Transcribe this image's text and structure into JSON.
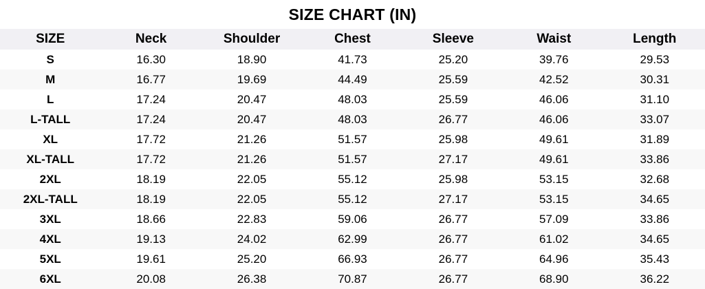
{
  "title": "SIZE CHART (IN)",
  "colors": {
    "page_bg": "#ffffff",
    "header_row_bg": "#f1f0f4",
    "stripe_row_bg": "#f8f8f8",
    "text": "#000000"
  },
  "chart_data": {
    "type": "table",
    "title": "SIZE CHART (IN)",
    "unit": "in",
    "columns": [
      "SIZE",
      "Neck",
      "Shoulder",
      "Chest",
      "Sleeve",
      "Waist",
      "Length"
    ],
    "rows": [
      {
        "size": "S",
        "values": [
          "16.30",
          "18.90",
          "41.73",
          "25.20",
          "39.76",
          "29.53"
        ]
      },
      {
        "size": "M",
        "values": [
          "16.77",
          "19.69",
          "44.49",
          "25.59",
          "42.52",
          "30.31"
        ]
      },
      {
        "size": "L",
        "values": [
          "17.24",
          "20.47",
          "48.03",
          "25.59",
          "46.06",
          "31.10"
        ]
      },
      {
        "size": "L-TALL",
        "values": [
          "17.24",
          "20.47",
          "48.03",
          "26.77",
          "46.06",
          "33.07"
        ]
      },
      {
        "size": "XL",
        "values": [
          "17.72",
          "21.26",
          "51.57",
          "25.98",
          "49.61",
          "31.89"
        ]
      },
      {
        "size": "XL-TALL",
        "values": [
          "17.72",
          "21.26",
          "51.57",
          "27.17",
          "49.61",
          "33.86"
        ]
      },
      {
        "size": "2XL",
        "values": [
          "18.19",
          "22.05",
          "55.12",
          "25.98",
          "53.15",
          "32.68"
        ]
      },
      {
        "size": "2XL-TALL",
        "values": [
          "18.19",
          "22.05",
          "55.12",
          "27.17",
          "53.15",
          "34.65"
        ]
      },
      {
        "size": "3XL",
        "values": [
          "18.66",
          "22.83",
          "59.06",
          "26.77",
          "57.09",
          "33.86"
        ]
      },
      {
        "size": "4XL",
        "values": [
          "19.13",
          "24.02",
          "62.99",
          "26.77",
          "61.02",
          "34.65"
        ]
      },
      {
        "size": "5XL",
        "values": [
          "19.61",
          "25.20",
          "66.93",
          "26.77",
          "64.96",
          "35.43"
        ]
      },
      {
        "size": "6XL",
        "values": [
          "20.08",
          "26.38",
          "70.87",
          "26.77",
          "68.90",
          "36.22"
        ]
      }
    ]
  }
}
